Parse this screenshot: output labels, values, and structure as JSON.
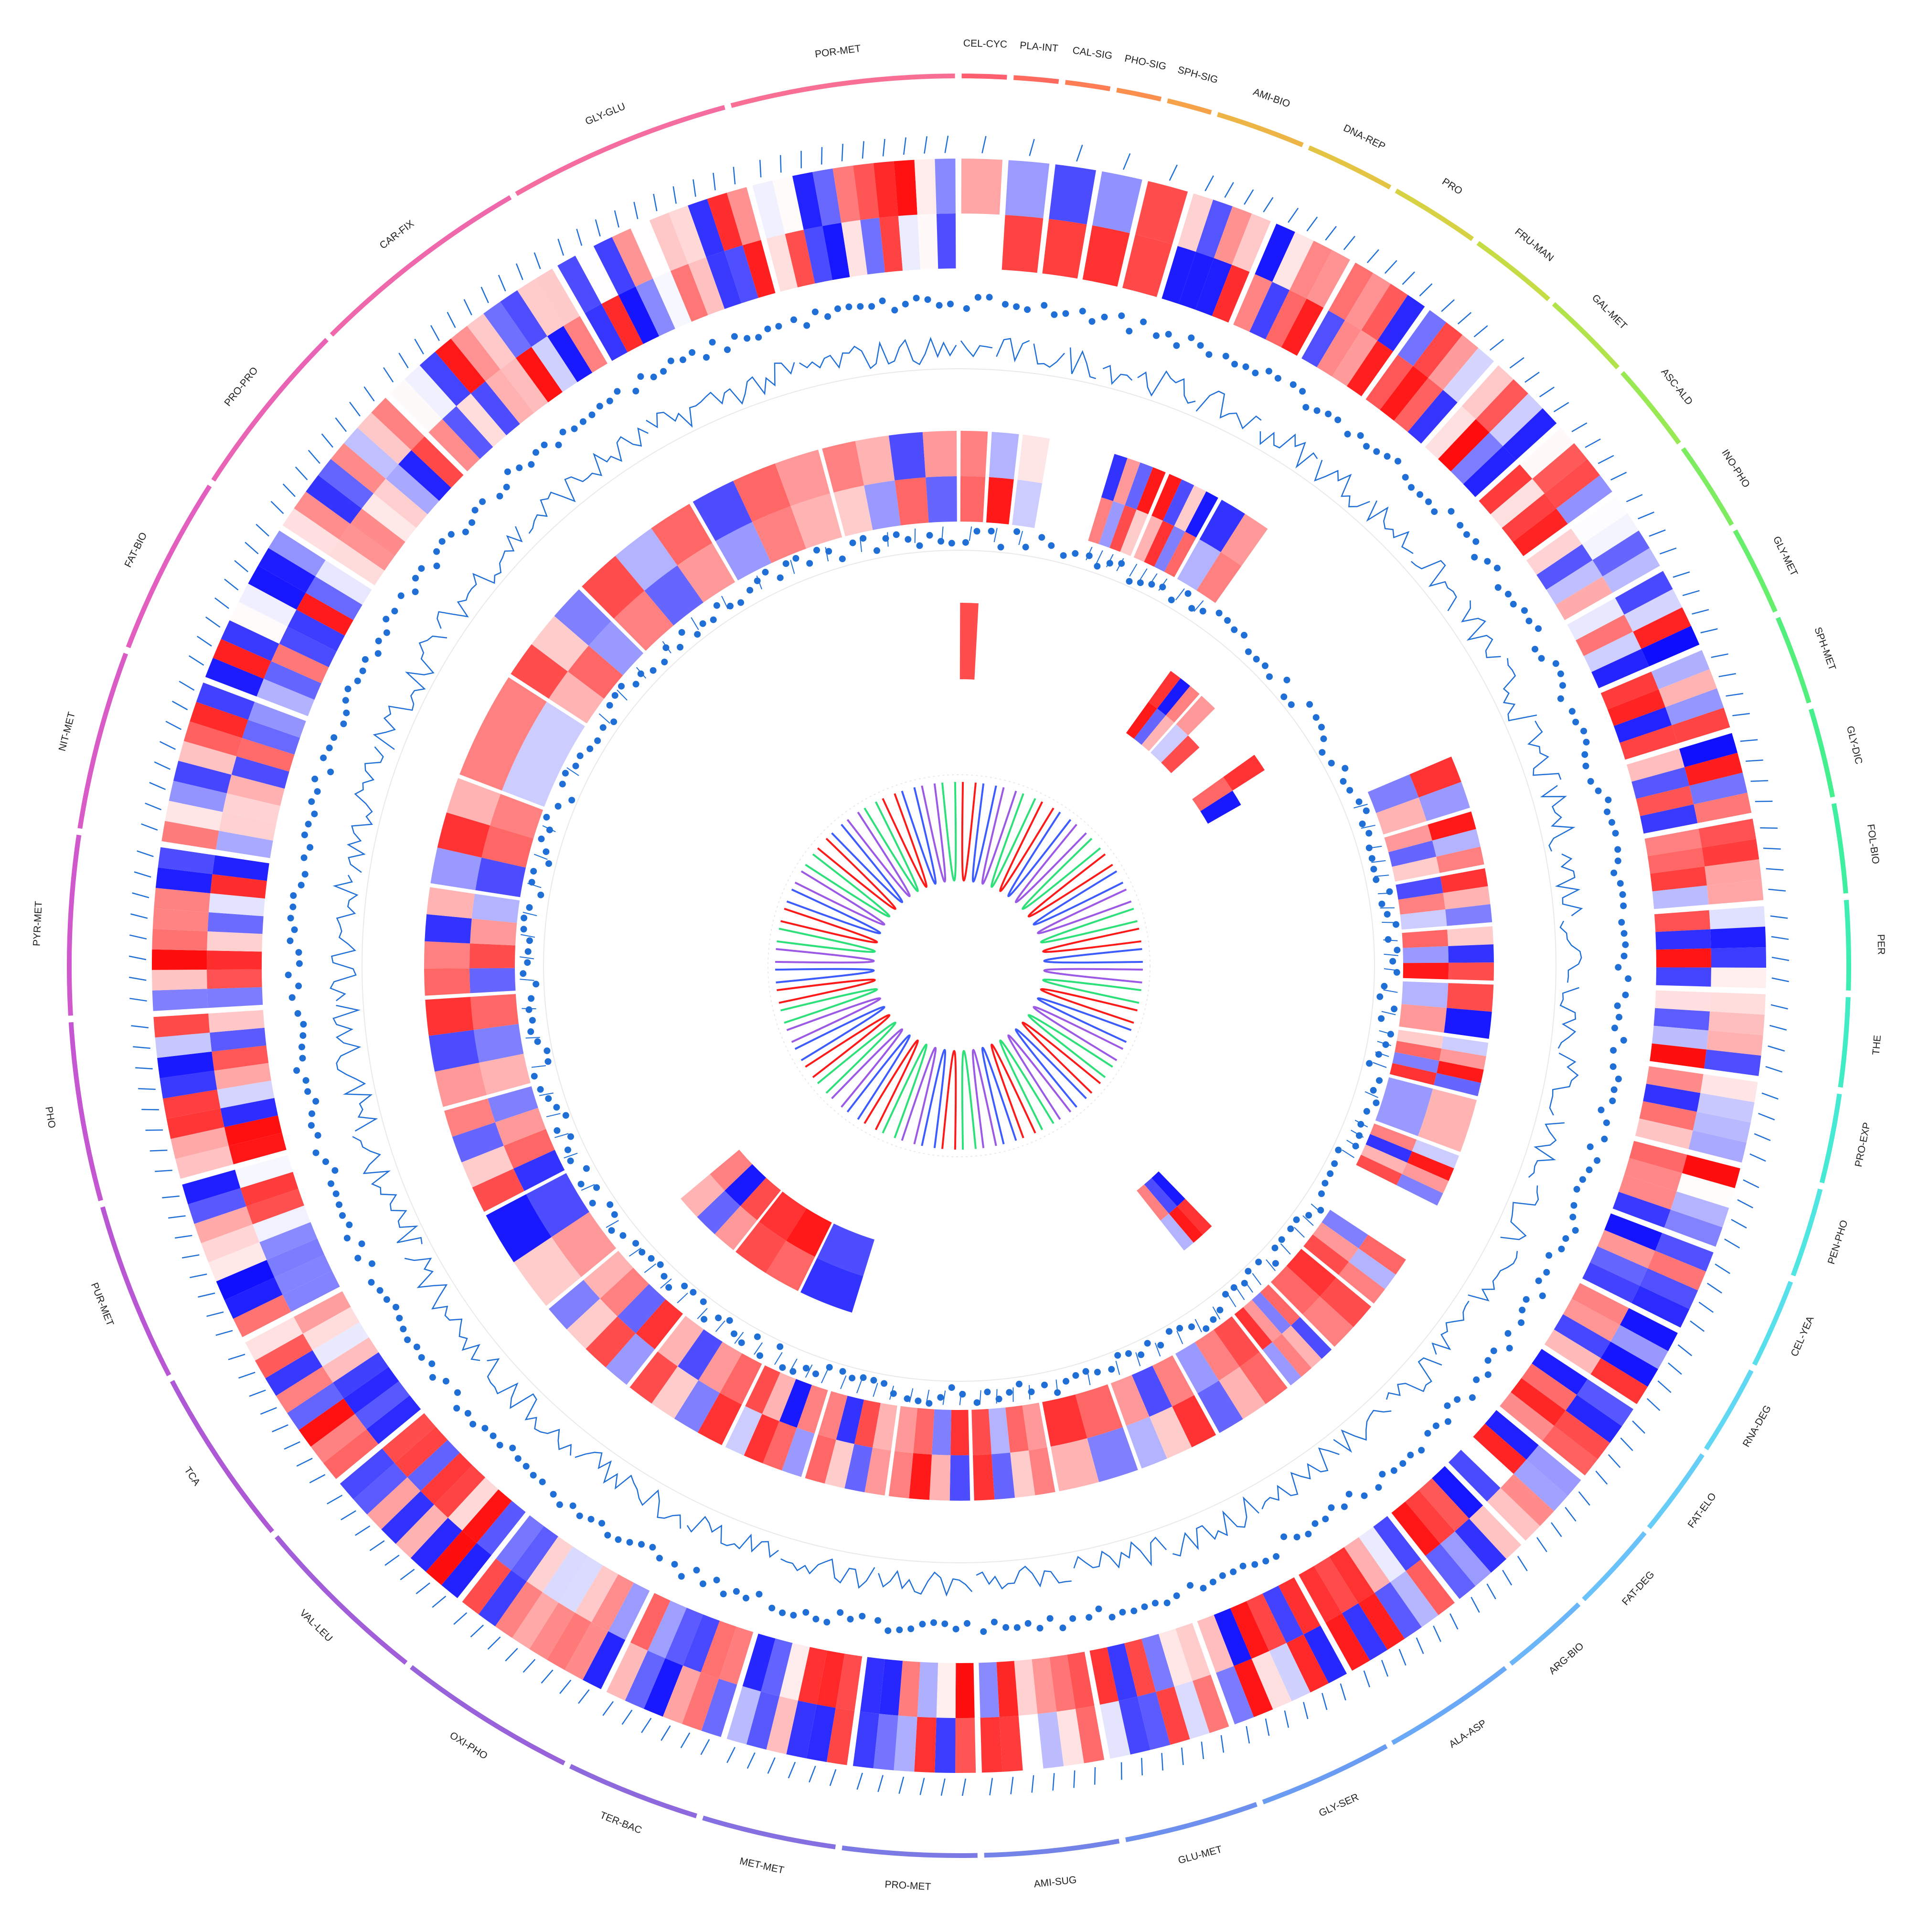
{
  "colors": {
    "heat_low": "#0000ff",
    "heat_mid": "#ffffff",
    "heat_high": "#ff0000",
    "track_blue": "#1f6fd6",
    "track_bg": "#e9e9e9",
    "link_colors": [
      "#ff1a1a",
      "#3d5cff",
      "#9b59e6",
      "#2ee07a"
    ]
  },
  "segments": [
    {
      "label": "CEL-CYC",
      "size": 1,
      "color": "#ff5f6e",
      "mid": [
        0.6,
        0.5
      ],
      "inner": [
        0.7
      ]
    },
    {
      "label": "PLA-INT",
      "size": 1,
      "color": "#ff6a5e",
      "mid": [
        0.9,
        -0.3
      ],
      "inner": []
    },
    {
      "label": "CAL-SIG",
      "size": 1,
      "color": "#ff7d55",
      "mid": [
        -0.2,
        0.1
      ],
      "inner": []
    },
    {
      "label": "PHO-SIG",
      "size": 1,
      "color": "#fb8f4e",
      "mid": [],
      "inner": []
    },
    {
      "label": "SPH-SIG",
      "size": 1,
      "color": "#f5a248",
      "mid": [],
      "inner": []
    },
    {
      "label": "AMI-BIO",
      "size": 2,
      "color": "#edb545",
      "mid": [
        0.5,
        -0.4,
        0.7,
        0.2,
        -0.8,
        0.4,
        -0.6,
        0.9
      ],
      "inner": []
    },
    {
      "label": "DNA-REP",
      "size": 2,
      "color": "#e3c443",
      "mid": [
        0.3,
        0.8,
        -0.5,
        0.6,
        0.9,
        -0.7,
        0.2,
        -0.9
      ],
      "inner": []
    },
    {
      "label": "PRO",
      "size": 2,
      "color": "#d7d243",
      "mid": [
        -0.3,
        0.5,
        -0.8,
        0.4
      ],
      "inner": []
    },
    {
      "label": "FRU-MAN",
      "size": 2,
      "color": "#c6dc45",
      "mid": [],
      "inner": [
        0.9,
        -0.6,
        0.3,
        0.8,
        -0.9,
        0.5
      ]
    },
    {
      "label": "GAL-MET",
      "size": 2,
      "color": "#b1e34b",
      "mid": [],
      "inner": [
        -0.2,
        0.7,
        0.4
      ]
    },
    {
      "label": "ASC-ALD",
      "size": 2,
      "color": "#98e954",
      "mid": [],
      "inner": []
    },
    {
      "label": "INO-PHO",
      "size": 2,
      "color": "#7eec60",
      "mid": [],
      "inner": [
        0.6,
        -0.9,
        0.8
      ]
    },
    {
      "label": "GLY-MET",
      "size": 2,
      "color": "#66ee6d",
      "mid": [],
      "inner": []
    },
    {
      "label": "SPH-MET",
      "size": 2,
      "color": "#52ef7c",
      "mid": [
        -0.5,
        0.3,
        0.8,
        -0.4
      ],
      "inner": []
    },
    {
      "label": "GLY-DIC",
      "size": 2,
      "color": "#44ef8d",
      "mid": [
        0.4,
        -0.6,
        0.2,
        0.9,
        -0.3,
        0.5
      ],
      "inner": []
    },
    {
      "label": "FOL-BIO",
      "size": 2,
      "color": "#3def9f",
      "mid": [
        -0.7,
        0.5,
        -0.2,
        0.8,
        0.3,
        -0.5
      ],
      "inner": []
    },
    {
      "label": "PER",
      "size": 2,
      "color": "#3ceeb1",
      "mid": [
        0.6,
        -0.4,
        0.9,
        0.2,
        -0.8,
        0.7
      ],
      "inner": []
    },
    {
      "label": "THE",
      "size": 2,
      "color": "#3fecc3",
      "mid": [
        -0.3,
        0.4,
        0.7,
        -0.9
      ],
      "inner": []
    },
    {
      "label": "PRO-EXP",
      "size": 2,
      "color": "#46e9d3",
      "mid": [
        0.2,
        0.6,
        -0.5,
        0.8,
        -0.2,
        0.4,
        0.9,
        -0.6
      ],
      "inner": []
    },
    {
      "label": "PEN-PHO",
      "size": 2,
      "color": "#4fe5e1",
      "mid": [
        -0.4,
        0.3
      ],
      "inner": []
    },
    {
      "label": "CEL-YEA",
      "size": 2,
      "color": "#58dfec",
      "mid": [
        0.5,
        -0.8,
        0.3,
        0.7,
        -0.2,
        0.9,
        0.4,
        -0.5
      ],
      "inner": []
    },
    {
      "label": "RNA-DEG",
      "size": 2,
      "color": "#60d7f3",
      "mid": [],
      "inner": []
    },
    {
      "label": "FAT-ELO",
      "size": 2,
      "color": "#66cdf7",
      "mid": [
        -0.5,
        0.4,
        0.7,
        0.6,
        -0.3,
        0.5
      ],
      "inner": []
    },
    {
      "label": "FAT-DEG",
      "size": 2,
      "color": "#69c2f9",
      "mid": [
        0.8,
        0.6,
        0.7,
        0.5
      ],
      "inner": []
    },
    {
      "label": "ARG-BIO",
      "size": 2,
      "color": "#6ab6f9",
      "mid": [
        0.6,
        -0.5,
        0.4,
        0.8,
        -0.7,
        0.3,
        0.5,
        -0.4
      ],
      "inner": [
        -0.9,
        -0.7,
        0.5,
        0.8,
        0.9,
        -0.3
      ]
    },
    {
      "label": "ALA-ASP",
      "size": 3,
      "color": "#6aa9f7",
      "mid": [
        0.7,
        0.5,
        -0.4,
        0.6,
        0.3,
        -0.6
      ],
      "inner": []
    },
    {
      "label": "GLY-SER",
      "size": 3,
      "color": "#6b9cf3",
      "mid": [
        0.5,
        -0.7,
        0.4,
        0.8,
        0.2,
        -0.3
      ],
      "inner": []
    },
    {
      "label": "GLU-MET",
      "size": 3,
      "color": "#6d8fee",
      "mid": [
        0.6,
        0.8,
        -0.5,
        0.3
      ],
      "inner": []
    },
    {
      "label": "AMI-SUG",
      "size": 3,
      "color": "#7383e8",
      "mid": [
        0.4,
        0.6,
        -0.3,
        0.7,
        0.5,
        0.2,
        -0.6,
        0.8
      ],
      "inner": []
    },
    {
      "label": "PRO-MET",
      "size": 3,
      "color": "#7b79e3",
      "mid": [
        0.8,
        -0.5,
        0.6,
        0.4,
        -0.7,
        0.3,
        0.9,
        0.5
      ],
      "inner": []
    },
    {
      "label": "MET-MET",
      "size": 3,
      "color": "#8470e0",
      "mid": [
        0.3,
        0.7,
        -0.8,
        0.5,
        0.4,
        -0.6,
        0.2,
        0.6
      ],
      "inner": []
    },
    {
      "label": "TER-BAC",
      "size": 3,
      "color": "#8e68dd",
      "mid": [
        0.5,
        -0.9,
        0.3,
        0.7,
        -0.4,
        0.6,
        0.8,
        -0.2
      ],
      "inner": [
        -0.7,
        -0.8
      ]
    },
    {
      "label": "OXI-PHO",
      "size": 4,
      "color": "#9862da",
      "mid": [
        0.6,
        0.4,
        -0.7,
        0.3,
        0.8,
        -0.5,
        0.2,
        0.7
      ],
      "inner": [
        0.9,
        0.8,
        0.6,
        0.7
      ]
    },
    {
      "label": "VAL-LEU",
      "size": 4,
      "color": "#a25dd8",
      "mid": [
        0.8,
        -0.6,
        0.5,
        0.3,
        -0.4,
        0.7,
        0.2,
        -0.5
      ],
      "inner": [
        0.7,
        -0.9,
        0.5,
        0.4,
        -0.6,
        0.3
      ]
    },
    {
      "label": "TCA",
      "size": 4,
      "color": "#ad59d6",
      "mid": [
        0.4,
        -0.7,
        0.2,
        -0.9
      ],
      "inner": []
    },
    {
      "label": "PUR-MET",
      "size": 4,
      "color": "#b856d4",
      "mid": [
        -0.8,
        0.6,
        0.4,
        -0.5,
        0.7,
        0.2,
        -0.6,
        0.5
      ],
      "inner": []
    },
    {
      "label": "PHO",
      "size": 4,
      "color": "#c456d1",
      "mid": [
        0.3,
        -0.5,
        0.6,
        0.4,
        -0.7,
        0.8
      ],
      "inner": []
    },
    {
      "label": "PYR-MET",
      "size": 4,
      "color": "#cf58cc",
      "mid": [
        -0.6,
        0.7,
        0.4,
        -0.3,
        0.6,
        0.5,
        -0.8,
        0.3
      ],
      "inner": []
    },
    {
      "label": "NIT-MET",
      "size": 4,
      "color": "#d95bc6",
      "mid": [
        -0.7,
        0.6,
        0.5,
        -0.4,
        0.8,
        0.3
      ],
      "inner": []
    },
    {
      "label": "FAT-BIO",
      "size": 4,
      "color": "#e25fbf",
      "mid": [
        -0.2,
        0.5
      ],
      "inner": []
    },
    {
      "label": "PRO-PRO",
      "size": 4,
      "color": "#ea64b6",
      "mid": [
        0.3,
        0.6,
        -0.4,
        0.7,
        0.2,
        -0.5
      ],
      "inner": []
    },
    {
      "label": "CAR-FIX",
      "size": 5,
      "color": "#f068ac",
      "mid": [
        0.5,
        -0.6,
        0.4,
        0.7,
        -0.3,
        0.6
      ],
      "inner": []
    },
    {
      "label": "GLY-GLU",
      "size": 5,
      "color": "#f56ca0",
      "mid": [
        -0.4,
        0.5,
        0.3,
        -0.7,
        0.6,
        0.4
      ],
      "inner": []
    },
    {
      "label": "POR-MET",
      "size": 5,
      "color": "#f96f93",
      "mid": [
        0.2,
        -0.4,
        0.6,
        -0.6,
        0.5,
        0.3,
        -0.7,
        0.4
      ],
      "inner": []
    }
  ],
  "links": {
    "count": 56
  }
}
